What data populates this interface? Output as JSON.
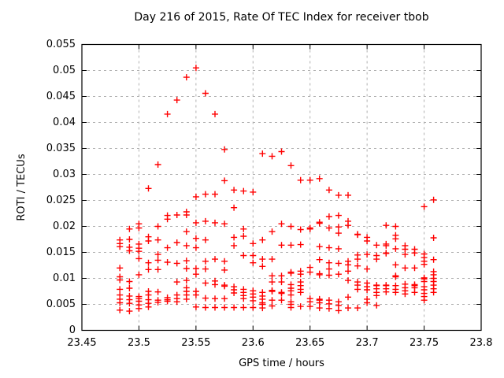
{
  "page": {
    "background": "#ffffff"
  },
  "chart_data": {
    "type": "scatter",
    "title": "Day 216 of 2015, Rate Of TEC Index for receiver tbob",
    "xlabel": "GPS time / hours",
    "ylabel": "ROTI / TECUs",
    "xlim": [
      23.45,
      23.8
    ],
    "ylim": [
      0,
      0.055
    ],
    "x_ticks": [
      23.45,
      23.5,
      23.55,
      23.6,
      23.65,
      23.7,
      23.75,
      23.8
    ],
    "x_tick_labels": [
      "23.45",
      "23.5",
      "23.55",
      "23.6",
      "23.65",
      "23.7",
      "23.75",
      "23.8"
    ],
    "y_ticks": [
      0,
      0.005,
      0.01,
      0.015,
      0.02,
      0.025,
      0.03,
      0.035,
      0.04,
      0.045,
      0.05,
      0.055
    ],
    "y_tick_labels": [
      "0",
      "0.005",
      "0.01",
      "0.015",
      "0.02",
      "0.025",
      "0.03",
      "0.035",
      "0.04",
      "0.045",
      "0.05",
      "0.055"
    ],
    "grid": "dashed-both-axes",
    "legend": "none",
    "border_color": "#000000",
    "grid_color": "#b0b0b0",
    "marker": {
      "shape": "plus",
      "color": "#ff0000",
      "size": 9
    },
    "series": [
      {
        "name": "ROTI",
        "columns": [
          {
            "x": 23.4833,
            "ys": [
              0.0174,
              0.0167,
              0.0161,
              0.012,
              0.0103,
              0.0097,
              0.0079,
              0.0068,
              0.006,
              0.0053,
              0.0039
            ]
          },
          {
            "x": 23.4917,
            "ys": [
              0.0195,
              0.0175,
              0.016,
              0.0153,
              0.0094,
              0.0081,
              0.0066,
              0.0059,
              0.0052,
              0.0037
            ]
          },
          {
            "x": 23.5,
            "ys": [
              0.0205,
              0.0197,
              0.0166,
              0.0158,
              0.0152,
              0.0138,
              0.0107,
              0.0065,
              0.0061,
              0.0056,
              0.0049,
              0.0042
            ]
          },
          {
            "x": 23.5083,
            "ys": [
              0.0273,
              0.018,
              0.0172,
              0.013,
              0.0117,
              0.0075,
              0.0068,
              0.0059,
              0.0052,
              0.0045
            ]
          },
          {
            "x": 23.5167,
            "ys": [
              0.0319,
              0.02,
              0.0174,
              0.0146,
              0.0135,
              0.0117,
              0.0074,
              0.0058,
              0.0054
            ]
          },
          {
            "x": 23.525,
            "ys": [
              0.0416,
              0.0221,
              0.0214,
              0.0159,
              0.0131,
              0.0063,
              0.0059,
              0.0056
            ]
          },
          {
            "x": 23.5333,
            "ys": [
              0.0443,
              0.0222,
              0.0169,
              0.0129,
              0.0093,
              0.0068,
              0.0061,
              0.0055
            ]
          },
          {
            "x": 23.5417,
            "ys": [
              0.0487,
              0.0228,
              0.0222,
              0.019,
              0.0163,
              0.0134,
              0.0119,
              0.0096,
              0.0082,
              0.0075,
              0.0068,
              0.006
            ]
          },
          {
            "x": 23.55,
            "ys": [
              0.0505,
              0.0257,
              0.0207,
              0.0177,
              0.0159,
              0.0119,
              0.0108,
              0.0075,
              0.0068,
              0.0045
            ]
          },
          {
            "x": 23.5583,
            "ys": [
              0.0456,
              0.0262,
              0.021,
              0.0174,
              0.0133,
              0.0118,
              0.0091,
              0.0062,
              0.0044
            ]
          },
          {
            "x": 23.5667,
            "ys": [
              0.0416,
              0.0262,
              0.0207,
              0.0137,
              0.0095,
              0.0088,
              0.0061,
              0.0044
            ]
          },
          {
            "x": 23.575,
            "ys": [
              0.0348,
              0.0288,
              0.0205,
              0.0133,
              0.0116,
              0.0087,
              0.0085,
              0.0061,
              0.0044
            ]
          },
          {
            "x": 23.5833,
            "ys": [
              0.027,
              0.0236,
              0.0179,
              0.0163,
              0.0084,
              0.0078,
              0.0072,
              0.0044
            ]
          },
          {
            "x": 23.5917,
            "ys": [
              0.0268,
              0.0195,
              0.0181,
              0.0144,
              0.0079,
              0.0073,
              0.0067,
              0.0061,
              0.0044
            ]
          },
          {
            "x": 23.6,
            "ys": [
              0.0266,
              0.0167,
              0.0144,
              0.013,
              0.0076,
              0.007,
              0.0064,
              0.0057,
              0.0044
            ]
          },
          {
            "x": 23.6083,
            "ys": [
              0.034,
              0.0174,
              0.0137,
              0.0123,
              0.0073,
              0.0066,
              0.006,
              0.0053,
              0.005,
              0.0043
            ]
          },
          {
            "x": 23.6167,
            "ys": [
              0.0335,
              0.019,
              0.0137,
              0.0105,
              0.0093,
              0.0077,
              0.0075,
              0.0058,
              0.0047
            ]
          },
          {
            "x": 23.625,
            "ys": [
              0.0344,
              0.0205,
              0.0164,
              0.0105,
              0.0093,
              0.0073,
              0.0071,
              0.0058
            ]
          },
          {
            "x": 23.6333,
            "ys": [
              0.0317,
              0.02,
              0.0164,
              0.0112,
              0.011,
              0.0088,
              0.0081,
              0.0076,
              0.0068,
              0.0055,
              0.005,
              0.0044
            ]
          },
          {
            "x": 23.6417,
            "ys": [
              0.0289,
              0.0194,
              0.0165,
              0.0114,
              0.0108,
              0.0093,
              0.0086,
              0.0079,
              0.0073,
              0.0046
            ]
          },
          {
            "x": 23.65,
            "ys": [
              0.0289,
              0.0197,
              0.0195,
              0.0121,
              0.0112,
              0.0061,
              0.0055,
              0.0046
            ]
          },
          {
            "x": 23.6583,
            "ys": [
              0.0292,
              0.0208,
              0.0206,
              0.0161,
              0.0136,
              0.0109,
              0.0107,
              0.006,
              0.0058,
              0.0053,
              0.0043
            ]
          },
          {
            "x": 23.6667,
            "ys": [
              0.027,
              0.0219,
              0.0197,
              0.0159,
              0.013,
              0.0118,
              0.0106,
              0.0058,
              0.0051,
              0.0042
            ]
          },
          {
            "x": 23.675,
            "ys": [
              0.026,
              0.0221,
              0.0199,
              0.0187,
              0.0157,
              0.0129,
              0.0108,
              0.0055,
              0.0048,
              0.0038
            ]
          },
          {
            "x": 23.6833,
            "ys": [
              0.026,
              0.021,
              0.0202,
              0.0133,
              0.0126,
              0.0114,
              0.0096,
              0.0064,
              0.0043
            ]
          },
          {
            "x": 23.6917,
            "ys": [
              0.0185,
              0.0184,
              0.0145,
              0.0137,
              0.0124,
              0.0093,
              0.0087,
              0.0079,
              0.0043
            ]
          },
          {
            "x": 23.7,
            "ys": [
              0.0179,
              0.0172,
              0.0146,
              0.0118,
              0.0091,
              0.0084,
              0.0078,
              0.006,
              0.0053
            ]
          },
          {
            "x": 23.7083,
            "ys": [
              0.0164,
              0.0144,
              0.0137,
              0.0087,
              0.0086,
              0.008,
              0.0073,
              0.0067,
              0.0048
            ]
          },
          {
            "x": 23.7167,
            "ys": [
              0.0202,
              0.0166,
              0.0163,
              0.0149,
              0.0148,
              0.0087,
              0.0086,
              0.008,
              0.0074
            ]
          },
          {
            "x": 23.725,
            "ys": [
              0.02,
              0.0183,
              0.0176,
              0.0157,
              0.0126,
              0.0105,
              0.0103,
              0.0086,
              0.0079,
              0.0073
            ]
          },
          {
            "x": 23.7333,
            "ys": [
              0.0163,
              0.0156,
              0.0146,
              0.012,
              0.0089,
              0.0082,
              0.0076,
              0.007
            ]
          },
          {
            "x": 23.7417,
            "ys": [
              0.0156,
              0.0149,
              0.012,
              0.0088,
              0.0086,
              0.0082,
              0.0073
            ]
          },
          {
            "x": 23.75,
            "ys": [
              0.0238,
              0.0147,
              0.014,
              0.0133,
              0.0127,
              0.0101,
              0.0099,
              0.0094,
              0.0084,
              0.0078,
              0.0071,
              0.0065,
              0.0058
            ]
          },
          {
            "x": 23.7583,
            "ys": [
              0.0251,
              0.0178,
              0.0136,
              0.0113,
              0.0107,
              0.01,
              0.0094,
              0.0087,
              0.008,
              0.0073
            ]
          }
        ]
      }
    ]
  }
}
